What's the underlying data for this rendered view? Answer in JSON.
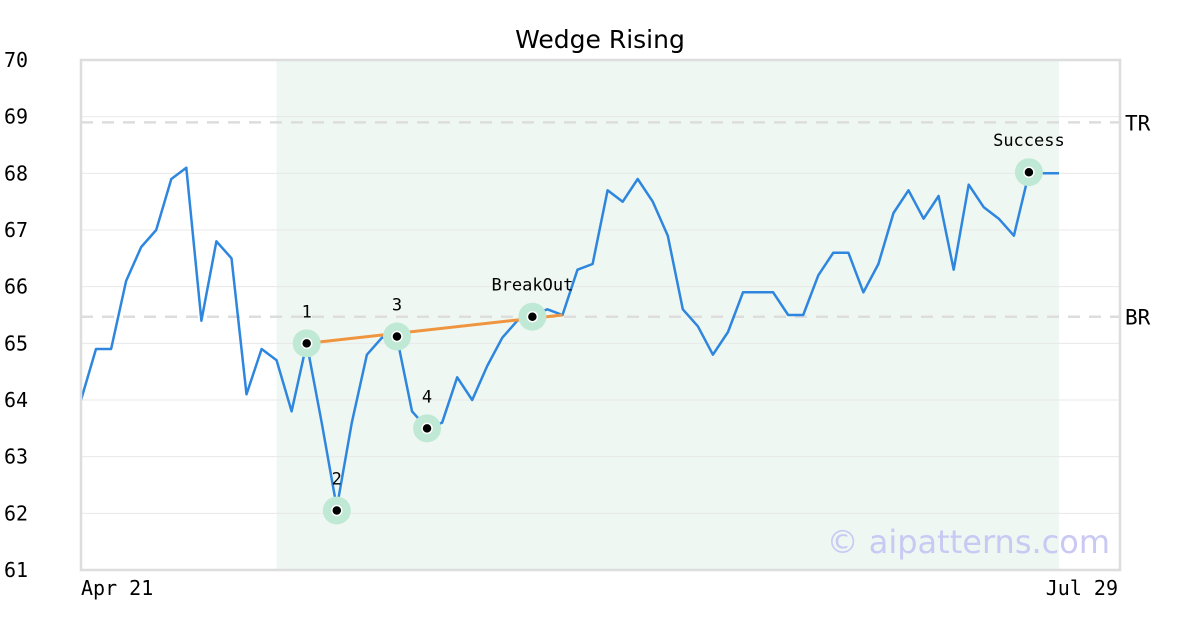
{
  "chart_data": {
    "type": "line",
    "title": "Wedge Rising",
    "xlabel": "",
    "ylabel": "",
    "ylim": [
      61,
      70
    ],
    "yticks": [
      "61",
      "62",
      "63",
      "64",
      "65",
      "66",
      "67",
      "68",
      "69",
      "70"
    ],
    "xtick_labels": [
      "Apr 21",
      "Jul 29"
    ],
    "grid": "horizontal",
    "series": [
      {
        "color": "#2e86de",
        "values": [
          64.0,
          64.9,
          64.9,
          66.1,
          66.7,
          67.0,
          67.9,
          68.1,
          65.4,
          66.8,
          66.5,
          64.1,
          64.9,
          64.7,
          63.8,
          65.0,
          63.6,
          62.1,
          63.6,
          64.8,
          65.1,
          65.1,
          63.8,
          63.5,
          63.6,
          64.4,
          64.0,
          64.6,
          65.1,
          65.4,
          65.5,
          65.6,
          65.5,
          66.3,
          66.4,
          67.7,
          67.5,
          67.9,
          67.5,
          66.9,
          65.6,
          65.3,
          64.8,
          65.2,
          65.9,
          65.9,
          65.9,
          65.5,
          65.5,
          66.2,
          66.6,
          66.6,
          65.9,
          66.4,
          67.3,
          67.7,
          67.2,
          67.6,
          66.3,
          67.8,
          67.4,
          67.2,
          66.9,
          68.0,
          68.0,
          68.0
        ]
      }
    ],
    "pattern_range_index": [
      13,
      65
    ],
    "pattern_color": "#eef7f2",
    "reference_lines": [
      {
        "label": "TR",
        "y": 68.9
      },
      {
        "label": "BR",
        "y": 65.47
      }
    ],
    "trendline": {
      "color": "#f0953f",
      "from": {
        "index": 15,
        "y": 65.0
      },
      "to": {
        "index": 32,
        "y": 65.5
      }
    },
    "points": [
      {
        "label": "1",
        "index": 15,
        "y": 65.0
      },
      {
        "label": "2",
        "index": 17,
        "y": 62.05
      },
      {
        "label": "3",
        "index": 21,
        "y": 65.12
      },
      {
        "label": "4",
        "index": 23,
        "y": 63.5
      },
      {
        "label": "BreakOut",
        "index": 30,
        "y": 65.47
      },
      {
        "label": "Success",
        "index": 63,
        "y": 68.02
      }
    ]
  },
  "watermark": "© aipatterns.com"
}
